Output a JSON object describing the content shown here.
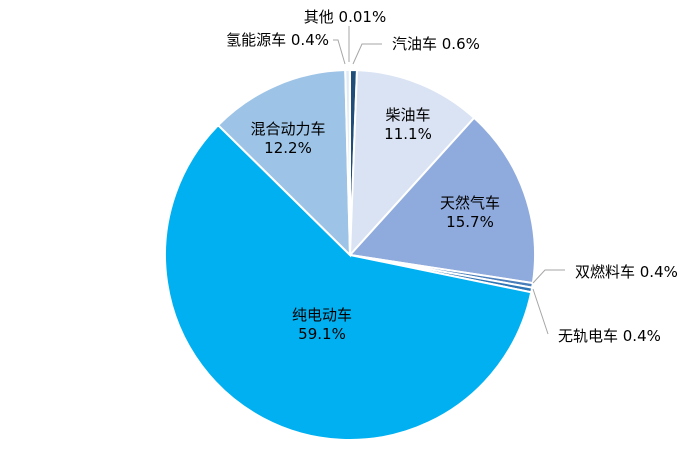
{
  "chart_data": {
    "type": "pie",
    "title": "",
    "slices": [
      {
        "label": "汽油车",
        "value": 0.6,
        "value_text": "0.6%",
        "color": "#1f4e79"
      },
      {
        "label": "柴油车",
        "value": 11.1,
        "value_text": "11.1%",
        "color": "#dae3f3"
      },
      {
        "label": "天然气车",
        "value": 15.7,
        "value_text": "15.7%",
        "color": "#8faadc"
      },
      {
        "label": "双燃料车",
        "value": 0.4,
        "value_text": "0.4%",
        "color": "#4a7ebb"
      },
      {
        "label": "无轨电车",
        "value": 0.4,
        "value_text": "0.4%",
        "color": "#2e75b6"
      },
      {
        "label": "纯电动车",
        "value": 59.1,
        "value_text": "59.1%",
        "color": "#00b0f0"
      },
      {
        "label": "混合动力车",
        "value": 12.2,
        "value_text": "12.2%",
        "color": "#9dc3e6"
      },
      {
        "label": "氢能源车",
        "value": 0.4,
        "value_text": "0.4%",
        "color": "#deebf7"
      },
      {
        "label": "其他",
        "value": 0.01,
        "value_text": "0.01%",
        "color": "#bdd7ee"
      }
    ],
    "start_angle_deg": 0,
    "direction": "clockwise",
    "legend": "none"
  }
}
